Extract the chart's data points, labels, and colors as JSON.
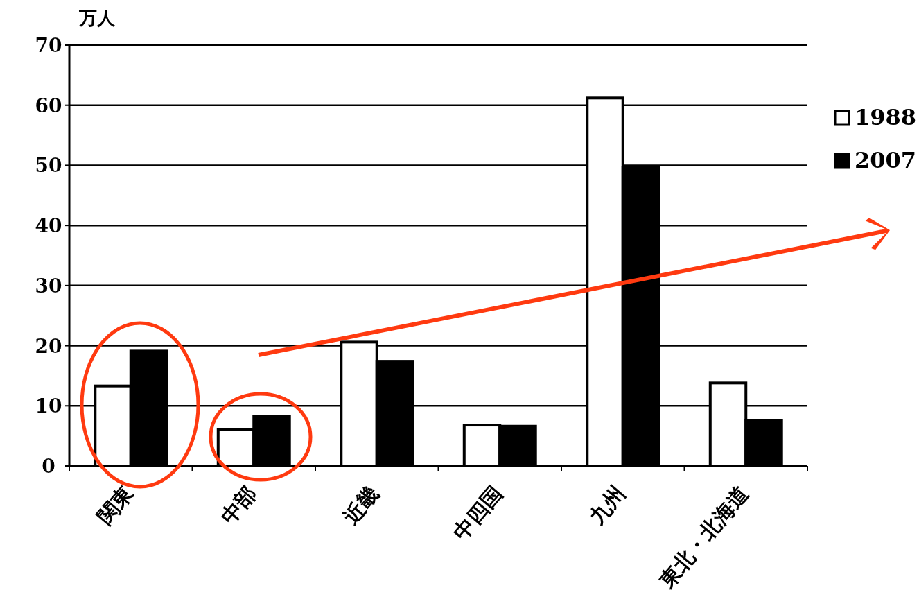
{
  "chart_data": {
    "type": "bar",
    "ylabel": "万人",
    "categories": [
      "関東",
      "中部",
      "近畿",
      "中四国",
      "九州",
      "東北・北海道"
    ],
    "series": [
      {
        "name": "1988",
        "color": "#ffffff",
        "values": [
          13.3,
          6.0,
          20.6,
          6.8,
          61.2,
          13.8
        ]
      },
      {
        "name": "2007",
        "color": "#000000",
        "values": [
          19.1,
          8.3,
          17.4,
          6.6,
          49.6,
          7.5
        ]
      }
    ],
    "ylim": [
      0,
      70
    ],
    "yticks": [
      0,
      10,
      20,
      30,
      40,
      50,
      60,
      70
    ],
    "grid": "y",
    "legend": "right"
  }
}
